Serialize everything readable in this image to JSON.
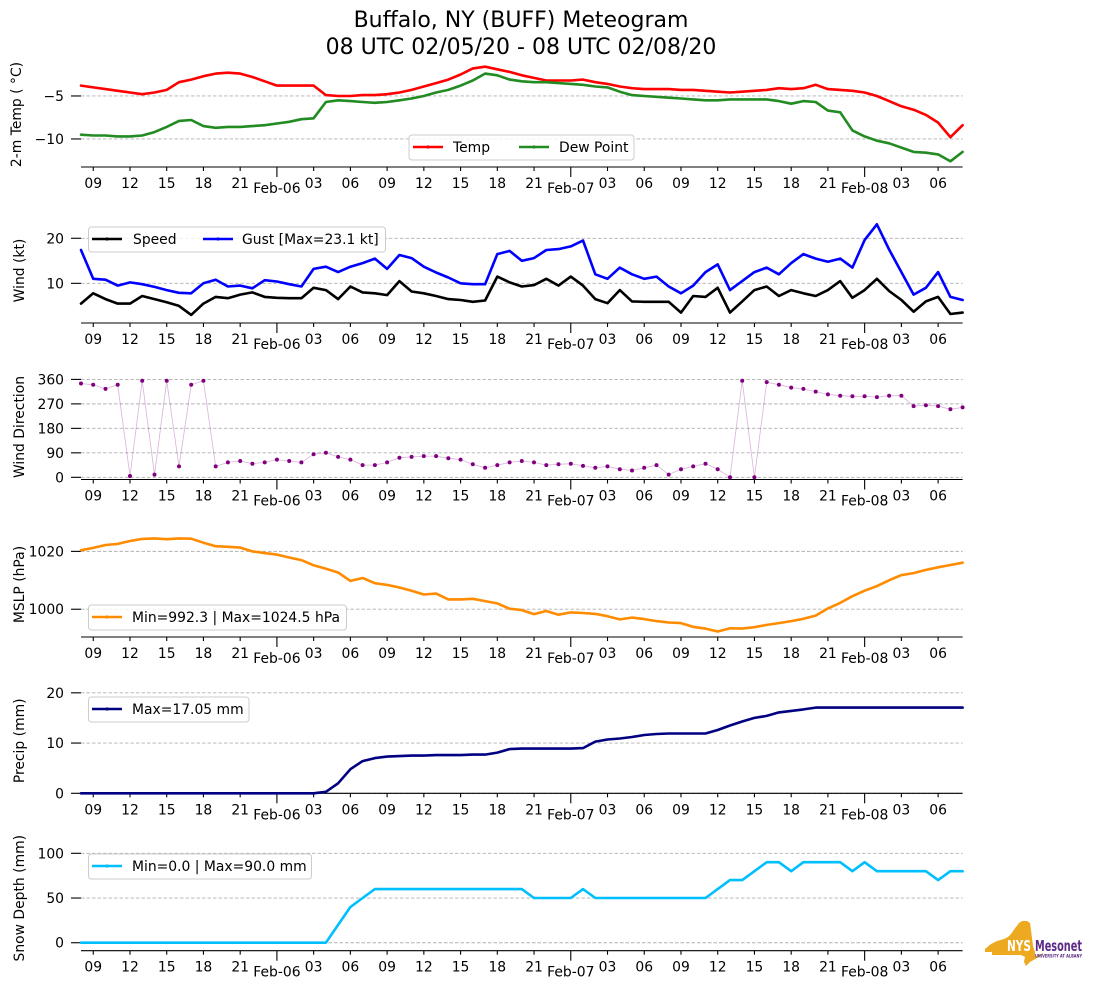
{
  "chart_title": {
    "line1": "Buffalo, NY (BUFF) Meteogram",
    "line2": "08 UTC 02/05/20 - 08 UTC 02/08/20"
  },
  "time_axis": {
    "start": "08 UTC 02/05/20",
    "end": "08 UTC 02/08/20",
    "interval_hours": 1,
    "span_hours": 72,
    "minor_ticks": [
      {
        "hour": 1,
        "label": "09"
      },
      {
        "hour": 4,
        "label": "12"
      },
      {
        "hour": 7,
        "label": "15"
      },
      {
        "hour": 10,
        "label": "18"
      },
      {
        "hour": 13,
        "label": "21"
      },
      {
        "hour": 19,
        "label": "03"
      },
      {
        "hour": 22,
        "label": "06"
      },
      {
        "hour": 25,
        "label": "09"
      },
      {
        "hour": 28,
        "label": "12"
      },
      {
        "hour": 31,
        "label": "15"
      },
      {
        "hour": 34,
        "label": "18"
      },
      {
        "hour": 37,
        "label": "21"
      },
      {
        "hour": 43,
        "label": "03"
      },
      {
        "hour": 46,
        "label": "06"
      },
      {
        "hour": 49,
        "label": "09"
      },
      {
        "hour": 52,
        "label": "12"
      },
      {
        "hour": 55,
        "label": "15"
      },
      {
        "hour": 58,
        "label": "18"
      },
      {
        "hour": 61,
        "label": "21"
      },
      {
        "hour": 67,
        "label": "03"
      },
      {
        "hour": 70,
        "label": "06"
      }
    ],
    "major_ticks": [
      {
        "hour": 16,
        "label": "Feb-06"
      },
      {
        "hour": 40,
        "label": "Feb-07"
      },
      {
        "hour": 64,
        "label": "Feb-08"
      }
    ]
  },
  "chart_data": [
    {
      "id": "temperature",
      "type": "line",
      "title": "Buffalo, NY (BUFF) Meteogram",
      "xlabel": "",
      "ylabel": "2-m Temp ( °C)",
      "ylim": [
        -13.26,
        -1.05
      ],
      "yticks": [
        -10,
        -5
      ],
      "ytick_labels": [
        "−10",
        "−5"
      ],
      "grid": true,
      "legend": "lower center",
      "series": [
        {
          "variable": "temp",
          "name": "Temp",
          "color": "#ff0000",
          "values": [
            -3.8,
            -4.0,
            -4.2,
            -4.4,
            -4.6,
            -4.8,
            -4.6,
            -4.3,
            -3.4,
            -3.1,
            -2.7,
            -2.4,
            -2.3,
            -2.4,
            -2.8,
            -3.3,
            -3.8,
            -3.8,
            -3.8,
            -3.8,
            -4.9,
            -5.0,
            -5.0,
            -4.9,
            -4.9,
            -4.8,
            -4.6,
            -4.3,
            -3.9,
            -3.5,
            -3.1,
            -2.5,
            -1.8,
            -1.6,
            -1.9,
            -2.2,
            -2.6,
            -2.9,
            -3.2,
            -3.2,
            -3.2,
            -3.1,
            -3.4,
            -3.6,
            -3.9,
            -4.1,
            -4.2,
            -4.2,
            -4.2,
            -4.3,
            -4.3,
            -4.4,
            -4.5,
            -4.6,
            -4.5,
            -4.4,
            -4.3,
            -4.1,
            -4.2,
            -4.1,
            -3.7,
            -4.2,
            -4.3,
            -4.4,
            -4.6,
            -5.0,
            -5.6,
            -6.2,
            -6.6,
            -7.2,
            -8.1,
            -9.8,
            -8.4
          ]
        },
        {
          "variable": "dew_point",
          "name": "Dew Point",
          "color": "#228b22",
          "values": [
            -9.5,
            -9.6,
            -9.6,
            -9.7,
            -9.7,
            -9.6,
            -9.2,
            -8.6,
            -7.9,
            -7.8,
            -8.5,
            -8.7,
            -8.6,
            -8.6,
            -8.5,
            -8.4,
            -8.2,
            -8.0,
            -7.7,
            -7.6,
            -5.7,
            -5.5,
            -5.6,
            -5.7,
            -5.8,
            -5.7,
            -5.5,
            -5.3,
            -5.0,
            -4.6,
            -4.3,
            -3.8,
            -3.2,
            -2.4,
            -2.6,
            -3.1,
            -3.3,
            -3.4,
            -3.4,
            -3.5,
            -3.6,
            -3.7,
            -3.9,
            -4.0,
            -4.5,
            -4.9,
            -5.0,
            -5.1,
            -5.2,
            -5.3,
            -5.4,
            -5.5,
            -5.5,
            -5.4,
            -5.4,
            -5.4,
            -5.4,
            -5.6,
            -5.9,
            -5.6,
            -5.7,
            -6.7,
            -6.9,
            -9.0,
            -9.7,
            -10.2,
            -10.5,
            -11.0,
            -11.5,
            -11.6,
            -11.8,
            -12.6,
            -11.5
          ]
        }
      ]
    },
    {
      "id": "wind",
      "type": "line",
      "ylabel": "Wind (kt)",
      "ylim": [
        1.2,
        24.5
      ],
      "yticks": [
        10,
        20
      ],
      "ytick_labels": [
        "10",
        "20"
      ],
      "grid": true,
      "legend": "upper left",
      "series": [
        {
          "variable": "speed",
          "name": "Speed",
          "color": "#000000",
          "values": [
            5.5,
            7.8,
            6.5,
            5.5,
            5.5,
            7.2,
            6.5,
            5.8,
            5.0,
            3.0,
            5.5,
            7.0,
            6.7,
            7.5,
            8.0,
            7.0,
            6.8,
            6.7,
            6.7,
            9.0,
            8.5,
            6.5,
            9.3,
            8.0,
            7.8,
            7.4,
            10.5,
            8.2,
            7.8,
            7.2,
            6.5,
            6.3,
            5.9,
            6.2,
            11.5,
            10.2,
            9.3,
            9.6,
            11.0,
            9.5,
            11.5,
            9.5,
            6.5,
            5.6,
            8.5,
            6.0,
            5.9,
            5.9,
            5.9,
            3.5,
            7.2,
            7.0,
            9.0,
            3.5,
            6.0,
            8.5,
            9.3,
            7.2,
            8.5,
            7.8,
            7.2,
            8.5,
            10.5,
            6.8,
            8.5,
            11.0,
            8.3,
            6.3,
            3.7,
            6.0,
            7.0,
            3.2,
            3.5
          ]
        },
        {
          "variable": "gust",
          "name": "Gust [Max=23.1 kt]",
          "color": "#0000ff",
          "values": [
            17.4,
            11.0,
            10.8,
            9.5,
            10.2,
            9.8,
            9.2,
            8.5,
            7.9,
            7.8,
            10.0,
            10.8,
            9.3,
            9.5,
            8.9,
            10.7,
            10.4,
            9.8,
            9.3,
            13.2,
            13.7,
            12.5,
            13.7,
            14.5,
            15.5,
            13.2,
            16.3,
            15.6,
            13.7,
            12.4,
            11.3,
            10.0,
            9.8,
            9.8,
            16.5,
            17.2,
            15.0,
            15.6,
            17.4,
            17.6,
            18.2,
            19.5,
            12.0,
            11.0,
            13.5,
            12.0,
            11.0,
            11.5,
            9.3,
            7.8,
            9.5,
            12.5,
            14.2,
            8.5,
            10.5,
            12.5,
            13.5,
            12.0,
            14.5,
            16.5,
            15.5,
            14.8,
            15.5,
            13.5,
            19.6,
            23.1,
            17.5,
            12.5,
            7.5,
            9.0,
            12.5,
            7.0,
            6.3
          ]
        }
      ]
    },
    {
      "id": "wind_direction",
      "type": "scatter",
      "ylabel": "Wind Direction",
      "ylim": [
        -8,
        378
      ],
      "yticks": [
        0,
        90,
        180,
        270,
        360
      ],
      "ytick_labels": [
        "0",
        "90",
        "180",
        "270",
        "360"
      ],
      "grid": true,
      "legend": "none",
      "series": [
        {
          "variable": "direction",
          "name": "Wind Direction",
          "color": "#800080",
          "values": [
            345,
            340,
            325,
            340,
            5,
            355,
            10,
            355,
            40,
            340,
            355,
            40,
            55,
            60,
            50,
            55,
            65,
            60,
            55,
            85,
            90,
            75,
            65,
            45,
            45,
            55,
            72,
            75,
            78,
            78,
            70,
            65,
            48,
            35,
            45,
            55,
            60,
            55,
            45,
            48,
            50,
            42,
            35,
            40,
            30,
            25,
            35,
            45,
            10,
            30,
            40,
            50,
            30,
            0,
            355,
            0,
            350,
            340,
            330,
            325,
            315,
            305,
            300,
            298,
            298,
            295,
            300,
            300,
            262,
            265,
            262,
            250,
            257
          ]
        }
      ]
    },
    {
      "id": "mslp",
      "type": "line",
      "ylabel": "MSLP (hPa)",
      "ylim": [
        990.4,
        1026.7
      ],
      "yticks": [
        1000,
        1020
      ],
      "ytick_labels": [
        "1000",
        "1020"
      ],
      "grid": true,
      "legend": "lower left",
      "series": [
        {
          "variable": "mslp",
          "name": "Min=992.3 | Max=1024.5 hPa",
          "color": "#ff8c00",
          "values": [
            1020.4,
            1021.2,
            1022.2,
            1022.6,
            1023.6,
            1024.3,
            1024.5,
            1024.2,
            1024.5,
            1024.4,
            1023.0,
            1021.8,
            1021.6,
            1021.3,
            1020.0,
            1019.4,
            1018.9,
            1017.9,
            1017.0,
            1015.2,
            1014.0,
            1012.7,
            1009.8,
            1010.8,
            1009.0,
            1008.4,
            1007.5,
            1006.4,
            1005.1,
            1005.4,
            1003.4,
            1003.4,
            1003.6,
            1002.8,
            1002.0,
            1000.2,
            999.7,
            998.3,
            999.4,
            998.1,
            998.9,
            998.7,
            998.4,
            997.6,
            996.5,
            997.1,
            996.6,
            995.9,
            995.4,
            995.2,
            993.9,
            993.3,
            992.3,
            993.4,
            993.3,
            993.8,
            994.6,
            995.2,
            995.9,
            996.7,
            997.8,
            1000.3,
            1002.2,
            1004.5,
            1006.4,
            1008.0,
            1010.0,
            1011.8,
            1012.5,
            1013.6,
            1014.5,
            1015.3,
            1016.1
          ]
        }
      ]
    },
    {
      "id": "precip",
      "type": "line",
      "ylabel": "Precip (mm)",
      "ylim": [
        0,
        20.9
      ],
      "yticks": [
        0,
        10,
        20
      ],
      "ytick_labels": [
        "0",
        "10",
        "20"
      ],
      "grid": true,
      "legend": "upper left",
      "series": [
        {
          "variable": "precip",
          "name": "Max=17.05 mm",
          "color": "#000080",
          "values": [
            0,
            0,
            0,
            0,
            0,
            0,
            0,
            0,
            0,
            0,
            0,
            0,
            0,
            0,
            0,
            0,
            0,
            0,
            0,
            0,
            0.3,
            2.0,
            4.8,
            6.4,
            7.0,
            7.3,
            7.4,
            7.5,
            7.5,
            7.6,
            7.6,
            7.6,
            7.7,
            7.7,
            8.1,
            8.8,
            8.9,
            8.9,
            8.9,
            8.9,
            8.9,
            9.0,
            10.3,
            10.7,
            10.9,
            11.2,
            11.6,
            11.8,
            11.9,
            11.9,
            11.9,
            11.9,
            12.6,
            13.5,
            14.3,
            15.0,
            15.4,
            16.1,
            16.4,
            16.7,
            17.05,
            17.05,
            17.05,
            17.05,
            17.05,
            17.05,
            17.05,
            17.05,
            17.05,
            17.05,
            17.05,
            17.05,
            17.05
          ]
        }
      ]
    },
    {
      "id": "snow_depth",
      "type": "line",
      "ylabel": "Snow Depth (mm)",
      "ylim": [
        -8.9,
        108.5
      ],
      "yticks": [
        0,
        50,
        100
      ],
      "ytick_labels": [
        "0",
        "50",
        "100"
      ],
      "grid": true,
      "legend": "upper left",
      "series": [
        {
          "variable": "snow_depth",
          "name": "Min=0.0 | Max=90.0 mm",
          "color": "#00bfff",
          "values": [
            0,
            0,
            0,
            0,
            0,
            0,
            0,
            0,
            0,
            0,
            0,
            0,
            0,
            0,
            0,
            0,
            0,
            0,
            0,
            0,
            0,
            20,
            40,
            50,
            60,
            60,
            60,
            60,
            60,
            60,
            60,
            60,
            60,
            60,
            60,
            60,
            60,
            50,
            50,
            50,
            50,
            60,
            50,
            50,
            50,
            50,
            50,
            50,
            50,
            50,
            50,
            50,
            60,
            70,
            70,
            80,
            90,
            90,
            80,
            90,
            90,
            90,
            90,
            80,
            90,
            80,
            80,
            80,
            80,
            80,
            70,
            80,
            80
          ]
        }
      ]
    }
  ],
  "logo": {
    "mark": "NYS",
    "name": "Mesonet",
    "subtitle": "UNIVERSITY AT ALBANY",
    "colors": {
      "gold": "#eda91f",
      "purple": "#5b2a86"
    }
  }
}
